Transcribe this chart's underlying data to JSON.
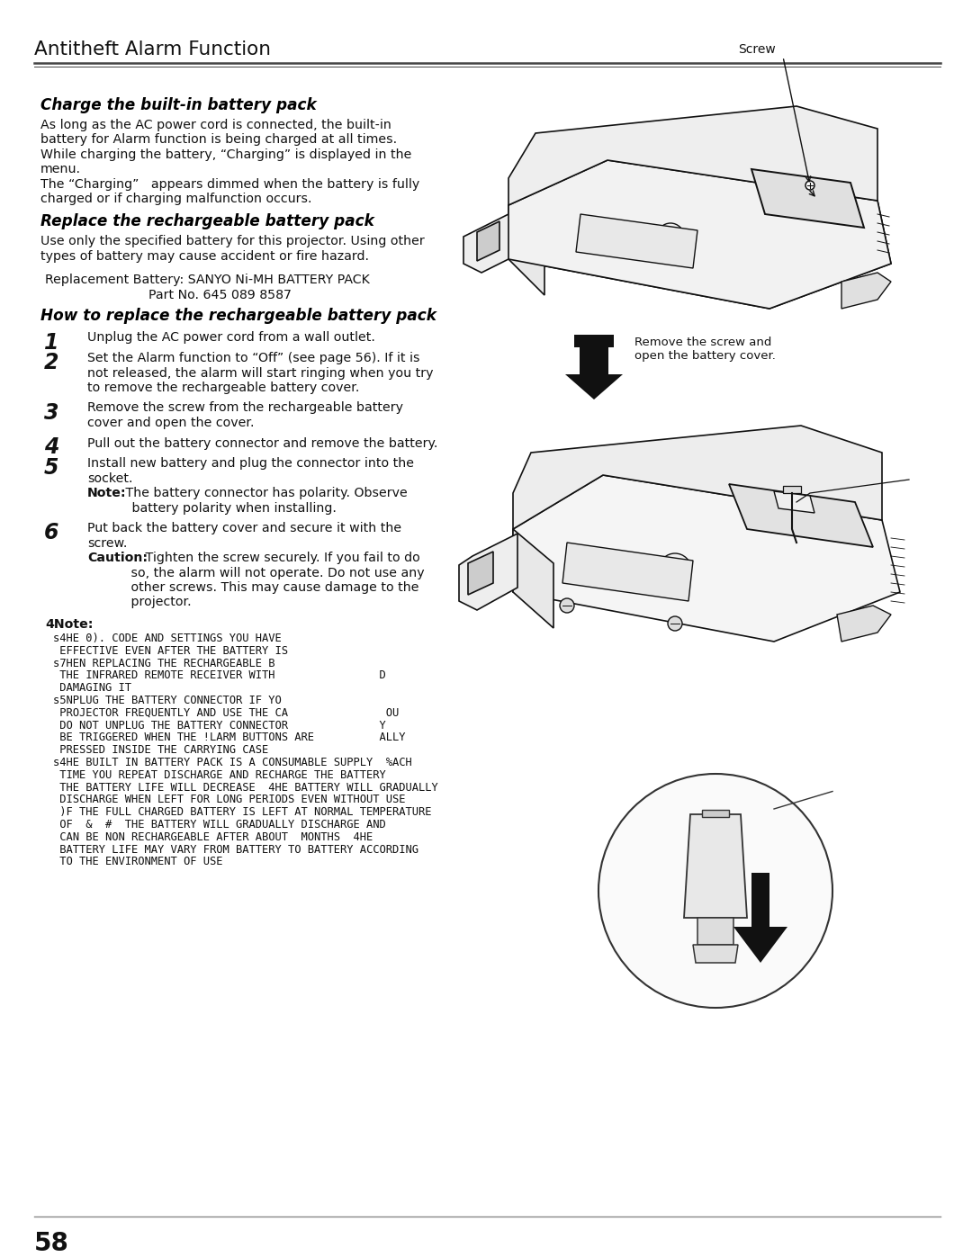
{
  "page_title": "Antitheft Alarm Function",
  "page_number": "58",
  "bg": "#ffffff",
  "charge_title": "Charge the built-in battery pack",
  "charge_body": [
    "As long as the AC power cord is connected, the built-in",
    "battery for Alarm function is being charged at all times.",
    "While charging the battery, “Charging” is displayed in the",
    "menu.",
    "The “Charging”   appears dimmed when the battery is fully",
    "charged or if charging malfunction occurs."
  ],
  "replace_title": "Replace the rechargeable battery pack",
  "replace_body": [
    "Use only the specified battery for this projector. Using other",
    "types of battery may cause accident or fire hazard."
  ],
  "repl_bat1": "Replacement Battery: SANYO Ni-MH BATTERY PACK",
  "repl_bat2": "Part No. 645 089 8587",
  "how_to_title": "How to replace the rechargeable battery pack",
  "steps": [
    {
      "num": "1",
      "lines": [
        "Unplug the AC power cord from a wall outlet."
      ],
      "note": null,
      "caution": null
    },
    {
      "num": "2",
      "lines": [
        "Set the Alarm function to “Off” (see page 56). If it is",
        "not released, the alarm will start ringing when you try",
        "to remove the rechargeable battery cover."
      ],
      "note": null,
      "caution": null
    },
    {
      "num": "3",
      "lines": [
        "Remove the screw from the rechargeable battery",
        "cover and open the cover."
      ],
      "note": null,
      "caution": null
    },
    {
      "num": "4",
      "lines": [
        "Pull out the battery connector and remove the battery."
      ],
      "note": null,
      "caution": null
    },
    {
      "num": "5",
      "lines": [
        "Install new battery and plug the connector into the",
        "socket."
      ],
      "note": "The battery connector has polarity. Observe\n       battery polarity when installing.",
      "caution": null
    },
    {
      "num": "6",
      "lines": [
        "Put back the battery cover and secure it with the",
        "screw."
      ],
      "note": null,
      "caution": "Tighten the screw securely. If you fail to do\n     so, the alarm will not operate. Do not use any\n     other screws. This may cause damage to the\n     projector."
    }
  ],
  "note_title": "4Note:",
  "note_lines": [
    "s4HE 0). CODE AND SETTINGS YOU HAVE",
    " EFFECTIVE EVEN AFTER THE BATTERY IS",
    "s7HEN REPLACING THE RECHARGEABLE B",
    " THE INFRARED REMOTE RECEIVER WITH                D",
    " DAMAGING IT",
    "s5NPLUG THE BATTERY CONNECTOR IF YO",
    " PROJECTOR FREQUENTLY AND USE THE CA               OU",
    " DO NOT UNPLUG THE BATTERY CONNECTOR              Y",
    " BE TRIGGERED WHEN THE !LARM BUTTONS ARE          ALLY",
    " PRESSED INSIDE THE CARRYING CASE",
    "s4HE BUILT IN BATTERY PACK IS A CONSUMABLE SUPPLY  %ACH",
    " TIME YOU REPEAT DISCHARGE AND RECHARGE THE BATTERY",
    " THE BATTERY LIFE WILL DECREASE  4HE BATTERY WILL GRADUALLY",
    " DISCHARGE WHEN LEFT FOR LONG PERIODS EVEN WITHOUT USE",
    " )F THE FULL CHARGED BATTERY IS LEFT AT NORMAL TEMPERATURE",
    " OF  &  #  THE BATTERY WILL GRADUALLY DISCHARGE AND",
    " CAN BE NON RECHARGEABLE AFTER ABOUT  MONTHS  4HE",
    " BATTERY LIFE MAY VARY FROM BATTERY TO BATTERY ACCORDING",
    " TO THE ENVIRONMENT OF USE"
  ],
  "screw_label": "Screw",
  "remove_label1": "Remove the screw and",
  "remove_label2": "open the battery cover."
}
